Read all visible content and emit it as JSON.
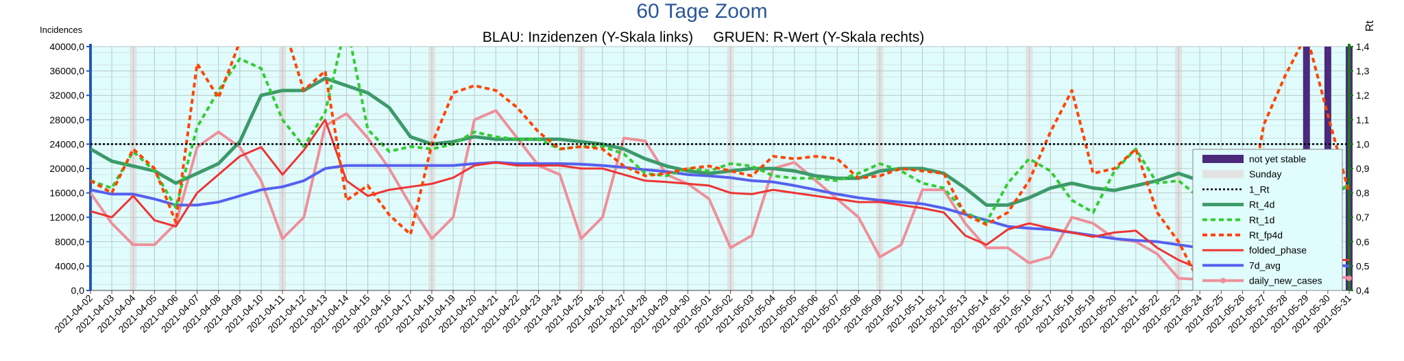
{
  "chart_data": {
    "type": "line",
    "title": "60 Tage Zoom",
    "subtitle": "BLAU: Inzidenzen (Y-Skala links)     GRUEN: R-Wert (Y-Skala rechts)",
    "ylabel_left": "Incidences",
    "ylabel_right": "Rt",
    "ylim_left": [
      0,
      40000
    ],
    "ylim_right": [
      0.4,
      1.4
    ],
    "yticks_left": [
      "0,0",
      "4000,0",
      "8000,0",
      "12000,0",
      "16000,0",
      "20000,0",
      "24000,0",
      "28000,0",
      "32000,0",
      "36000,0",
      "40000,0"
    ],
    "yticks_right": [
      "0,4",
      "0,5",
      "0,6",
      "0,7",
      "0,8",
      "0,9",
      "1,0",
      "1,1",
      "1,2",
      "1,3",
      "1,4"
    ],
    "grid": true,
    "legend_position": "right",
    "x": [
      "2021-04-02",
      "2021-04-03",
      "2021-04-04",
      "2021-04-05",
      "2021-04-06",
      "2021-04-07",
      "2021-04-08",
      "2021-04-09",
      "2021-04-10",
      "2021-04-11",
      "2021-04-12",
      "2021-04-13",
      "2021-04-14",
      "2021-04-15",
      "2021-04-16",
      "2021-04-17",
      "2021-04-18",
      "2021-04-19",
      "2021-04-20",
      "2021-04-21",
      "2021-04-22",
      "2021-04-23",
      "2021-04-24",
      "2021-04-25",
      "2021-04-26",
      "2021-04-27",
      "2021-04-28",
      "2021-04-29",
      "2021-04-30",
      "2021-05-01",
      "2021-05-02",
      "2021-05-03",
      "2021-05-04",
      "2021-05-05",
      "2021-05-06",
      "2021-05-07",
      "2021-05-08",
      "2021-05-09",
      "2021-05-10",
      "2021-05-11",
      "2021-05-12",
      "2021-05-13",
      "2021-05-14",
      "2021-05-15",
      "2021-05-16",
      "2021-05-17",
      "2021-05-18",
      "2021-05-19",
      "2021-05-20",
      "2021-05-21",
      "2021-05-22",
      "2021-05-23",
      "2021-05-24",
      "2021-05-25",
      "2021-05-26",
      "2021-05-27",
      "2021-05-28",
      "2021-05-29",
      "2021-05-30",
      "2021-05-31"
    ],
    "sundays": [
      "2021-04-04",
      "2021-04-11",
      "2021-04-18",
      "2021-04-25",
      "2021-05-02",
      "2021-05-09",
      "2021-05-16",
      "2021-05-23",
      "2021-05-30"
    ],
    "not_yet_stable": [
      "2021-05-29",
      "2021-05-30",
      "2021-05-31"
    ],
    "colors": {
      "not_yet_stable": "#4b2a7b",
      "sunday": "#e3e3e3",
      "rt_ref": "#000000",
      "rt_4d": "#3d9a6a",
      "rt_1d": "#33cc33",
      "rt_fp4d": "#ff4400",
      "folded_phase": "#ee3333",
      "avg_7d": "#5560ee",
      "daily_new_cases": "#ee909a",
      "left_axis": "#2255bb",
      "right_axis": "#1a7a1a",
      "title": "#2b5797",
      "plot_bg": "#e0fcfc"
    },
    "legend": [
      {
        "key": "not_yet_stable",
        "label": "not yet stable"
      },
      {
        "key": "sunday",
        "label": "Sunday"
      },
      {
        "key": "rt_ref",
        "label": "1_Rt"
      },
      {
        "key": "rt_4d",
        "label": "Rt_4d"
      },
      {
        "key": "rt_1d",
        "label": "Rt_1d"
      },
      {
        "key": "rt_fp4d",
        "label": "Rt_fp4d"
      },
      {
        "key": "folded_phase",
        "label": "folded_phase"
      },
      {
        "key": "avg_7d",
        "label": "7d_avg"
      },
      {
        "key": "daily_new_cases",
        "label": "daily_new_cases"
      }
    ],
    "series": [
      {
        "key": "rt_ref",
        "name": "1_Rt",
        "axis": "right",
        "values": [
          1.0,
          1.0,
          1.0,
          1.0,
          1.0,
          1.0,
          1.0,
          1.0,
          1.0,
          1.0,
          1.0,
          1.0,
          1.0,
          1.0,
          1.0,
          1.0,
          1.0,
          1.0,
          1.0,
          1.0,
          1.0,
          1.0,
          1.0,
          1.0,
          1.0,
          1.0,
          1.0,
          1.0,
          1.0,
          1.0,
          1.0,
          1.0,
          1.0,
          1.0,
          1.0,
          1.0,
          1.0,
          1.0,
          1.0,
          1.0,
          1.0,
          1.0,
          1.0,
          1.0,
          1.0,
          1.0,
          1.0,
          1.0,
          1.0,
          1.0,
          1.0,
          1.0,
          1.0,
          1.0,
          1.0,
          1.0,
          1.0,
          1.0,
          1.0,
          1.0
        ]
      },
      {
        "key": "rt_4d",
        "name": "Rt_4d",
        "axis": "right",
        "values": [
          0.98,
          0.93,
          0.91,
          0.89,
          0.84,
          0.88,
          0.92,
          1.01,
          1.2,
          1.22,
          1.22,
          1.27,
          1.24,
          1.21,
          1.15,
          1.03,
          1.0,
          1.01,
          1.03,
          1.02,
          1.02,
          1.02,
          1.02,
          1.01,
          1.0,
          0.98,
          0.94,
          0.91,
          0.89,
          0.88,
          0.89,
          0.9,
          0.9,
          0.89,
          0.87,
          0.86,
          0.86,
          0.89,
          0.9,
          0.9,
          0.88,
          0.82,
          0.75,
          0.75,
          0.78,
          0.82,
          0.84,
          0.82,
          0.81,
          0.83,
          0.85,
          0.88,
          0.85,
          0.73,
          0.69,
          0.69,
          0.68,
          0.73,
          0.79,
          0.83
        ]
      },
      {
        "key": "rt_1d",
        "name": "Rt_1d",
        "axis": "right",
        "values": [
          0.85,
          0.82,
          0.97,
          0.89,
          0.74,
          1.07,
          1.22,
          1.35,
          1.31,
          1.1,
          0.99,
          1.13,
          1.5,
          1.06,
          0.97,
          0.99,
          0.98,
          1.0,
          1.05,
          1.03,
          1.02,
          1.02,
          0.98,
          0.99,
          0.99,
          0.96,
          0.88,
          0.87,
          0.9,
          0.89,
          0.92,
          0.91,
          0.87,
          0.86,
          0.86,
          0.85,
          0.88,
          0.92,
          0.89,
          0.84,
          0.82,
          0.72,
          0.68,
          0.84,
          0.94,
          0.89,
          0.77,
          0.72,
          0.89,
          0.98,
          0.84,
          0.85,
          0.78,
          0.51,
          0.55,
          0.76,
          0.83,
          0.73,
          0.75,
          0.84
        ]
      },
      {
        "key": "rt_fp4d",
        "name": "Rt_fp4d",
        "axis": "right",
        "values": [
          0.85,
          0.8,
          0.98,
          0.9,
          0.68,
          1.33,
          1.19,
          1.42,
          1.52,
          1.5,
          1.22,
          1.3,
          0.77,
          0.83,
          0.71,
          0.63,
          1.0,
          1.21,
          1.24,
          1.22,
          1.15,
          1.05,
          0.98,
          0.99,
          0.98,
          0.91,
          0.87,
          0.88,
          0.9,
          0.91,
          0.89,
          0.87,
          0.95,
          0.94,
          0.95,
          0.94,
          0.86,
          0.87,
          0.9,
          0.89,
          0.88,
          0.71,
          0.67,
          0.72,
          0.85,
          1.05,
          1.22,
          0.88,
          0.9,
          0.98,
          0.72,
          0.6,
          0.43,
          0.43,
          0.58,
          1.08,
          1.28,
          1.45,
          1.12,
          0.8
        ]
      },
      {
        "key": "folded_phase",
        "name": "folded_phase",
        "axis": "left",
        "values": [
          13000,
          12000,
          15500,
          11500,
          10500,
          16000,
          19000,
          22000,
          23500,
          19000,
          23000,
          28000,
          18000,
          15500,
          16500,
          17000,
          17500,
          18500,
          20500,
          21000,
          20500,
          20500,
          20500,
          20000,
          20000,
          19000,
          18000,
          17800,
          17500,
          17200,
          16000,
          15800,
          16500,
          16000,
          15500,
          15000,
          14500,
          14500,
          14000,
          13500,
          12800,
          9000,
          7500,
          10000,
          11000,
          10200,
          9500,
          8800,
          9500,
          9800,
          7000,
          5000,
          3500,
          3200,
          4500,
          5500,
          4800,
          4500,
          5000,
          5000
        ]
      },
      {
        "key": "avg_7d",
        "name": "7d_avg",
        "axis": "left",
        "values": [
          16500,
          15800,
          15800,
          15000,
          14000,
          14000,
          14500,
          15500,
          16500,
          17000,
          18000,
          20000,
          20500,
          20500,
          20500,
          20500,
          20500,
          20500,
          20800,
          21000,
          20800,
          20800,
          20800,
          20700,
          20500,
          20200,
          19800,
          19500,
          19000,
          18800,
          18500,
          18000,
          17800,
          17200,
          16500,
          15800,
          15200,
          14800,
          14500,
          14200,
          13500,
          12500,
          11500,
          10500,
          10200,
          10000,
          9500,
          9000,
          8500,
          8200,
          8000,
          7500,
          7000,
          6500,
          5500,
          5000,
          4600,
          4400,
          4200,
          4000
        ]
      },
      {
        "key": "daily_new_cases",
        "name": "daily_new_cases",
        "axis": "left",
        "values": [
          16000,
          11000,
          7500,
          7500,
          11000,
          23500,
          26000,
          23500,
          18000,
          8500,
          12000,
          27000,
          29000,
          25000,
          20000,
          14000,
          8500,
          12000,
          28000,
          29500,
          25000,
          20500,
          19000,
          8500,
          12000,
          25000,
          24500,
          19000,
          17500,
          15000,
          7000,
          9000,
          20000,
          21000,
          18000,
          15000,
          12000,
          5500,
          7500,
          16500,
          16500,
          11000,
          7000,
          7000,
          4500,
          5500,
          12000,
          11000,
          8500,
          8000,
          6000,
          2000,
          1800,
          3500,
          7000,
          7000,
          5500,
          4000,
          2500,
          2000
        ]
      }
    ]
  }
}
